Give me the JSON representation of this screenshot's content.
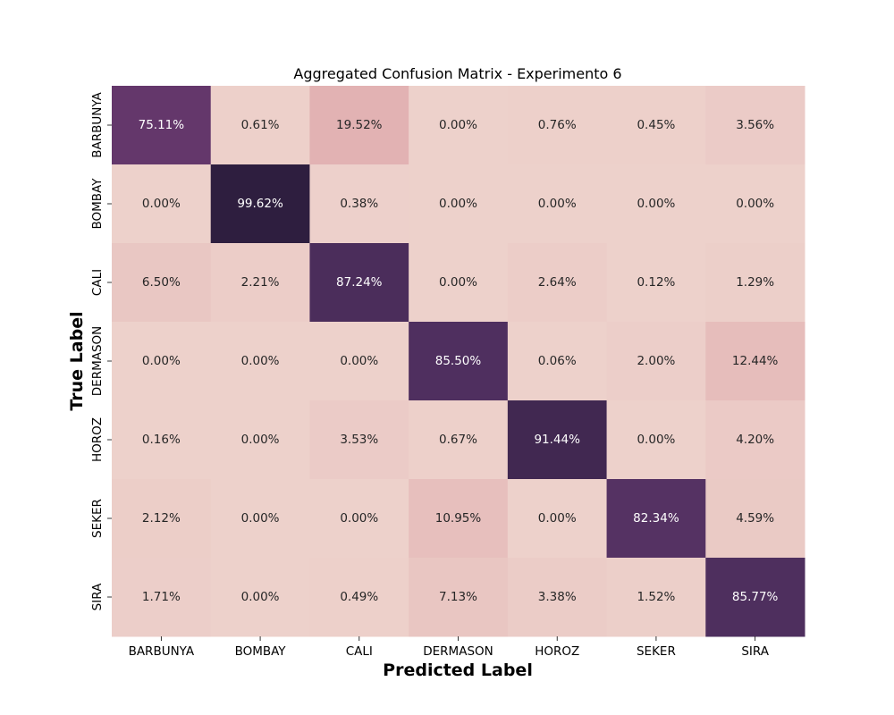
{
  "chart_data": {
    "type": "heatmap",
    "title": "Aggregated Confusion Matrix - Experimento 6",
    "xlabel": "Predicted Label",
    "ylabel": "True Label",
    "x_categories": [
      "BARBUNYA",
      "BOMBAY",
      "CALI",
      "DERMASON",
      "HOROZ",
      "SEKER",
      "SIRA"
    ],
    "y_categories": [
      "BARBUNYA",
      "BOMBAY",
      "CALI",
      "DERMASON",
      "HOROZ",
      "SEKER",
      "SIRA"
    ],
    "values": [
      [
        75.11,
        0.61,
        19.52,
        0.0,
        0.76,
        0.45,
        3.56
      ],
      [
        0.0,
        99.62,
        0.38,
        0.0,
        0.0,
        0.0,
        0.0
      ],
      [
        6.5,
        2.21,
        87.24,
        0.0,
        2.64,
        0.12,
        1.29
      ],
      [
        0.0,
        0.0,
        0.0,
        85.5,
        0.06,
        2.0,
        12.44
      ],
      [
        0.16,
        0.0,
        3.53,
        0.67,
        91.44,
        0.0,
        4.2
      ],
      [
        2.12,
        0.0,
        0.0,
        10.95,
        0.0,
        82.34,
        4.59
      ],
      [
        1.71,
        0.0,
        0.49,
        7.13,
        3.38,
        1.52,
        85.77
      ]
    ],
    "value_format": "percent_2dp",
    "colormap": "cubehelix-light-rose-to-dark-purple",
    "colorbar": false,
    "grid": false,
    "legend": "none"
  }
}
